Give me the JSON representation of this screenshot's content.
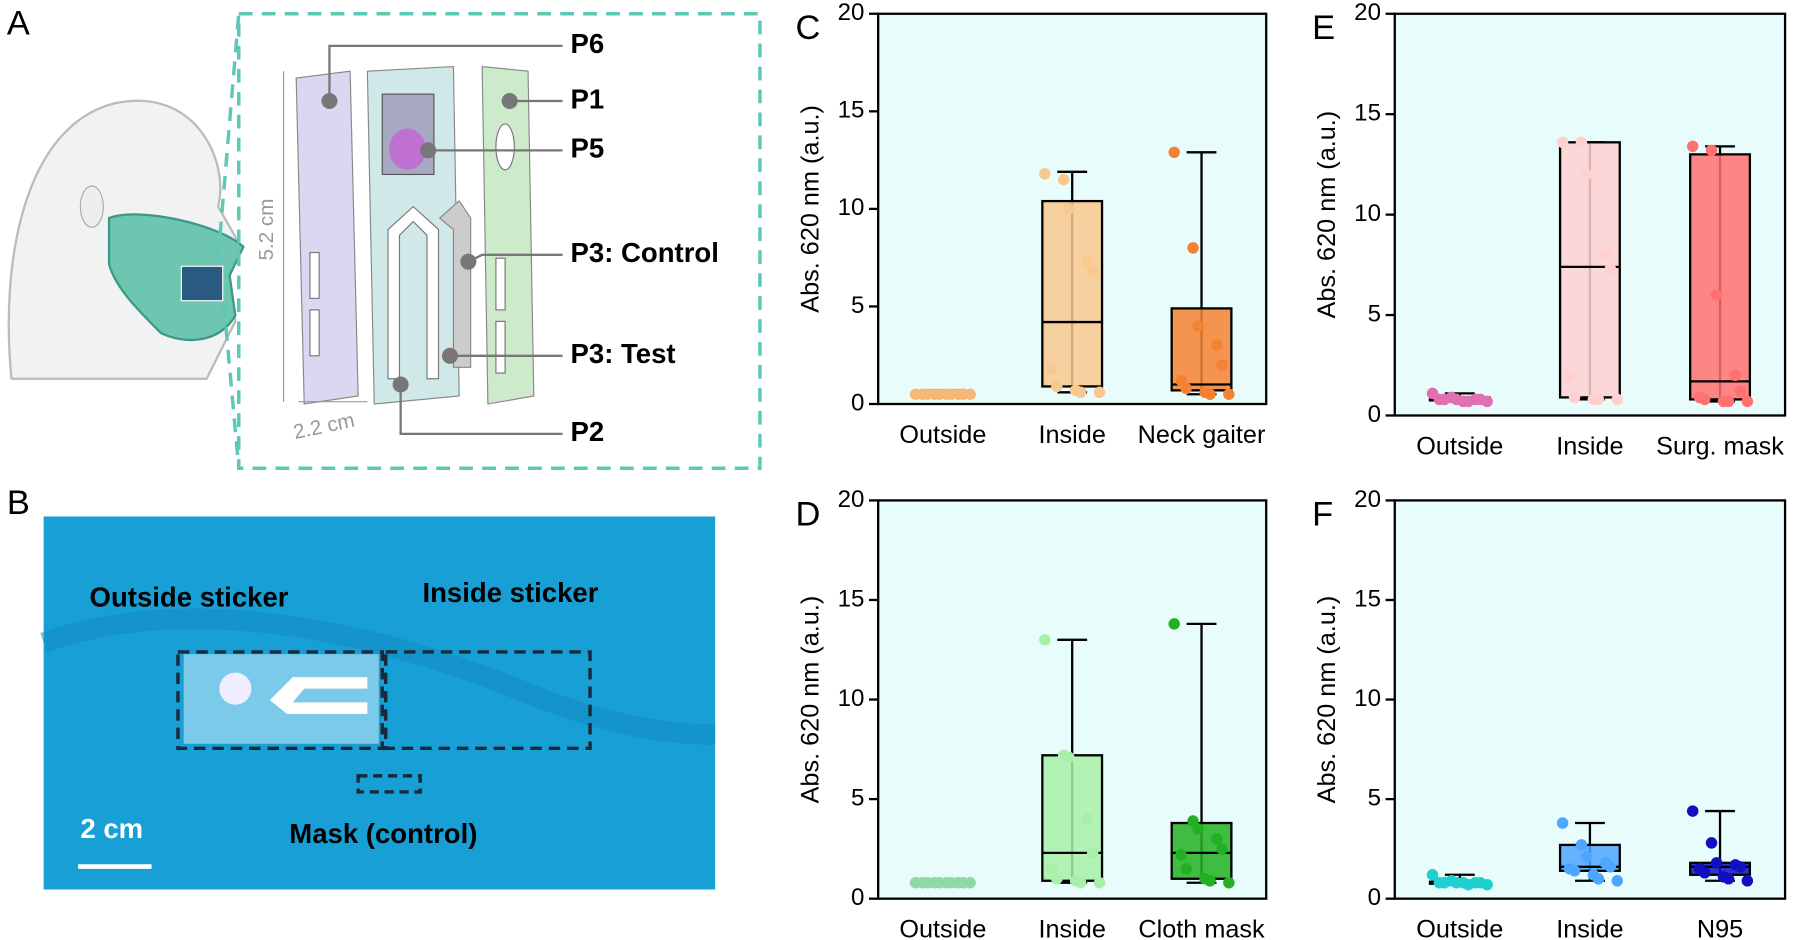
{
  "panels": {
    "A": {
      "letter": "A",
      "parts": [
        "P6",
        "P1",
        "P5",
        "P3: Control",
        "P3: Test",
        "P2"
      ],
      "dims": [
        "5.2 cm",
        "2.2 cm"
      ]
    },
    "B": {
      "letter": "B",
      "labels": [
        "Outside sticker",
        "Inside sticker",
        "Mask (control)"
      ],
      "scale": "2 cm"
    }
  },
  "chart_data": [
    {
      "type": "box",
      "panel": "C",
      "ylabel": "Abs. 620 nm (a.u.)",
      "ylim": [
        0,
        20
      ],
      "yticks": [
        0,
        5,
        10,
        15,
        20
      ],
      "categories": [
        "Outside",
        "Inside",
        "Neck gaiter"
      ],
      "boxes": [
        {
          "color": "#f5b878",
          "min": 0.4,
          "q1": 0.5,
          "median": 0.55,
          "q3": 0.6,
          "max": 0.7,
          "points": [
            0.5,
            0.5,
            0.5,
            0.5,
            0.5,
            0.5,
            0.5,
            0.5,
            0.5,
            0.5
          ]
        },
        {
          "color": "#f9c88f",
          "min": 0.6,
          "q1": 0.9,
          "median": 4.2,
          "q3": 10.4,
          "max": 11.9,
          "points": [
            11.8,
            11.5,
            10.0,
            7.3,
            6.8,
            1.8,
            0.9,
            0.7,
            0.6,
            0.6
          ]
        },
        {
          "color": "#f58231",
          "min": 0.5,
          "q1": 0.7,
          "median": 1.0,
          "q3": 4.9,
          "max": 12.9,
          "points": [
            12.9,
            8.0,
            4.0,
            3.0,
            2.0,
            1.2,
            0.8,
            0.6,
            0.5,
            0.5
          ]
        }
      ]
    },
    {
      "type": "box",
      "panel": "D",
      "ylabel": "Abs. 620 nm (a.u.)",
      "ylim": [
        0,
        20
      ],
      "yticks": [
        0,
        5,
        10,
        15,
        20
      ],
      "categories": [
        "Outside",
        "Inside",
        "Cloth mask"
      ],
      "boxes": [
        {
          "color": "#8fd8a8",
          "min": 0.7,
          "q1": 0.75,
          "median": 0.8,
          "q3": 0.85,
          "max": 0.9,
          "points": [
            0.8,
            0.8,
            0.8,
            0.8,
            0.8,
            0.8,
            0.8,
            0.8,
            0.8,
            0.8
          ]
        },
        {
          "color": "#a8f0a8",
          "min": 0.8,
          "q1": 0.9,
          "median": 2.3,
          "q3": 7.2,
          "max": 13.0,
          "points": [
            13.0,
            7.2,
            7.1,
            4.0,
            2.3,
            1.5,
            1.0,
            0.9,
            0.8,
            0.8
          ]
        },
        {
          "color": "#22b022",
          "min": 0.8,
          "q1": 1.0,
          "median": 2.3,
          "q3": 3.8,
          "max": 13.8,
          "points": [
            13.8,
            3.9,
            3.5,
            3.0,
            2.5,
            2.2,
            1.5,
            1.0,
            0.9,
            0.8
          ]
        }
      ]
    },
    {
      "type": "box",
      "panel": "E",
      "ylabel": "Abs. 620 nm (a.u.)",
      "ylim": [
        0,
        20
      ],
      "yticks": [
        0,
        5,
        10,
        15,
        20
      ],
      "categories": [
        "Outside",
        "Inside",
        "Surg. mask"
      ],
      "boxes": [
        {
          "color": "#e070b0",
          "min": 0.7,
          "q1": 0.75,
          "median": 0.8,
          "q3": 0.9,
          "max": 1.1,
          "points": [
            1.1,
            0.9,
            0.8,
            0.8,
            0.8,
            0.8,
            0.8,
            0.7,
            0.7,
            0.7
          ]
        },
        {
          "color": "#ffd0d0",
          "min": 0.8,
          "q1": 0.9,
          "median": 7.4,
          "q3": 13.6,
          "max": 13.6,
          "points": [
            13.6,
            13.6,
            12.0,
            8.0,
            7.3,
            1.9,
            0.9,
            0.8,
            0.8,
            0.8
          ]
        },
        {
          "color": "#ff7070",
          "min": 0.7,
          "q1": 0.8,
          "median": 1.7,
          "q3": 13.0,
          "max": 13.4,
          "points": [
            13.4,
            13.2,
            6.0,
            2.0,
            1.2,
            0.9,
            0.8,
            0.7,
            0.7,
            0.7
          ]
        }
      ]
    },
    {
      "type": "box",
      "panel": "F",
      "ylabel": "Abs. 620 nm (a.u.)",
      "ylim": [
        0,
        20
      ],
      "yticks": [
        0,
        5,
        10,
        15,
        20
      ],
      "categories": [
        "Outside",
        "Inside",
        "N95"
      ],
      "boxes": [
        {
          "color": "#20d0d0",
          "min": 0.7,
          "q1": 0.75,
          "median": 0.8,
          "q3": 0.85,
          "max": 1.2,
          "points": [
            1.2,
            0.9,
            0.8,
            0.8,
            0.8,
            0.8,
            0.8,
            0.8,
            0.7,
            0.7
          ]
        },
        {
          "color": "#4da6ff",
          "min": 0.9,
          "q1": 1.4,
          "median": 1.6,
          "q3": 2.7,
          "max": 3.8,
          "points": [
            3.8,
            2.7,
            2.1,
            1.8,
            1.6,
            1.5,
            1.4,
            1.2,
            1.0,
            0.9
          ]
        },
        {
          "color": "#1010c0",
          "min": 0.9,
          "q1": 1.2,
          "median": 1.6,
          "q3": 1.8,
          "max": 4.4,
          "points": [
            4.4,
            2.8,
            1.8,
            1.7,
            1.6,
            1.5,
            1.3,
            1.1,
            1.0,
            0.9
          ]
        }
      ]
    }
  ]
}
